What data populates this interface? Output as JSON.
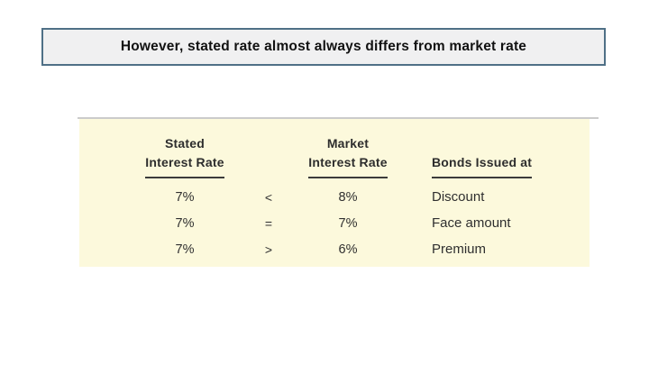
{
  "slide": {
    "title": "However, stated rate almost always differs from market rate"
  },
  "theme": {
    "title_box_fill": "#f0f0f1",
    "title_box_border": "#4f7086",
    "table_background": "#fcf9dc",
    "table_top_rule": "#cbcbcb",
    "table_text": "#2f2f2f",
    "header_underline": "#3b3b3b"
  },
  "table": {
    "headers": {
      "stated_line1": "Stated",
      "stated_line2": "Interest Rate",
      "market_line1": "Market",
      "market_line2": "Interest Rate",
      "bonds": "Bonds Issued at"
    },
    "rows": [
      {
        "stated": "7%",
        "comparison": "<",
        "market": "8%",
        "bonds_issued_at": "Discount"
      },
      {
        "stated": "7%",
        "comparison": "=",
        "market": "7%",
        "bonds_issued_at": "Face amount"
      },
      {
        "stated": "7%",
        "comparison": ">",
        "market": "6%",
        "bonds_issued_at": "Premium"
      }
    ]
  }
}
